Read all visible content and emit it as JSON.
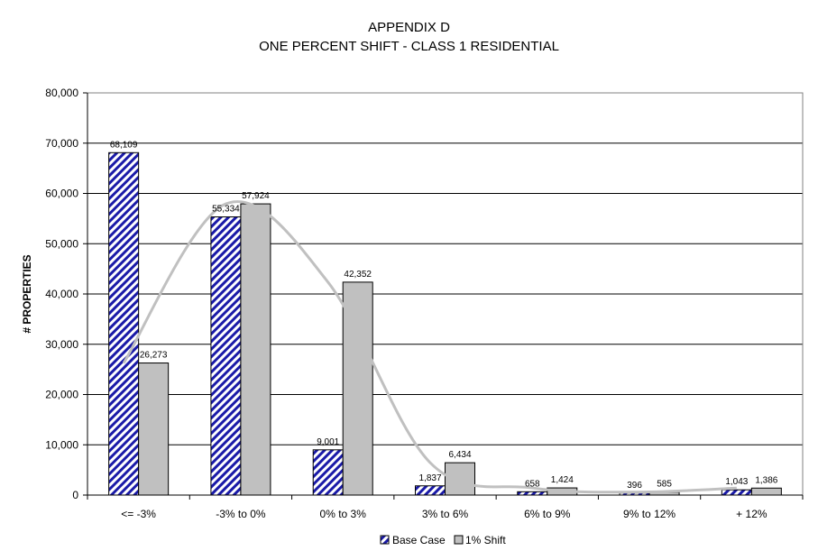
{
  "chart_data": {
    "type": "bar",
    "title": "APPENDIX D",
    "subtitle": "ONE PERCENT SHIFT - CLASS 1 RESIDENTIAL",
    "xlabel": "",
    "ylabel": "# PROPERTIES",
    "ylim": [
      0,
      80000
    ],
    "yticks": [
      0,
      10000,
      20000,
      30000,
      40000,
      50000,
      60000,
      70000,
      80000
    ],
    "ytick_labels": [
      "0",
      "10,000",
      "20,000",
      "30,000",
      "40,000",
      "50,000",
      "60,000",
      "70,000",
      "80,000"
    ],
    "grid": true,
    "legend_position": "bottom-center",
    "categories": [
      "<=  -3%",
      "-3% to  0%",
      "0% to  3%",
      "3% to 6%",
      "6% to 9%",
      "9% to 12%",
      "+ 12%"
    ],
    "series": [
      {
        "name": "Base Case",
        "values": [
          68109,
          55334,
          9001,
          1837,
          658,
          396,
          1043
        ],
        "labels": [
          "68,109",
          "55,334",
          "9,001",
          "1,837",
          "658",
          "396",
          "1,043"
        ],
        "fill": "hatched",
        "color": "#1a1aa8"
      },
      {
        "name": "1% Shift",
        "values": [
          26273,
          57924,
          42352,
          6434,
          1424,
          585,
          1386
        ],
        "labels": [
          "26,273",
          "57,924",
          "42,352",
          "6,434",
          "1,424",
          "585",
          "1,386"
        ],
        "fill": "solid",
        "color": "#c0c0c0"
      }
    ],
    "trendline": {
      "series": "1% Shift",
      "color": "#c0c0c0"
    }
  }
}
